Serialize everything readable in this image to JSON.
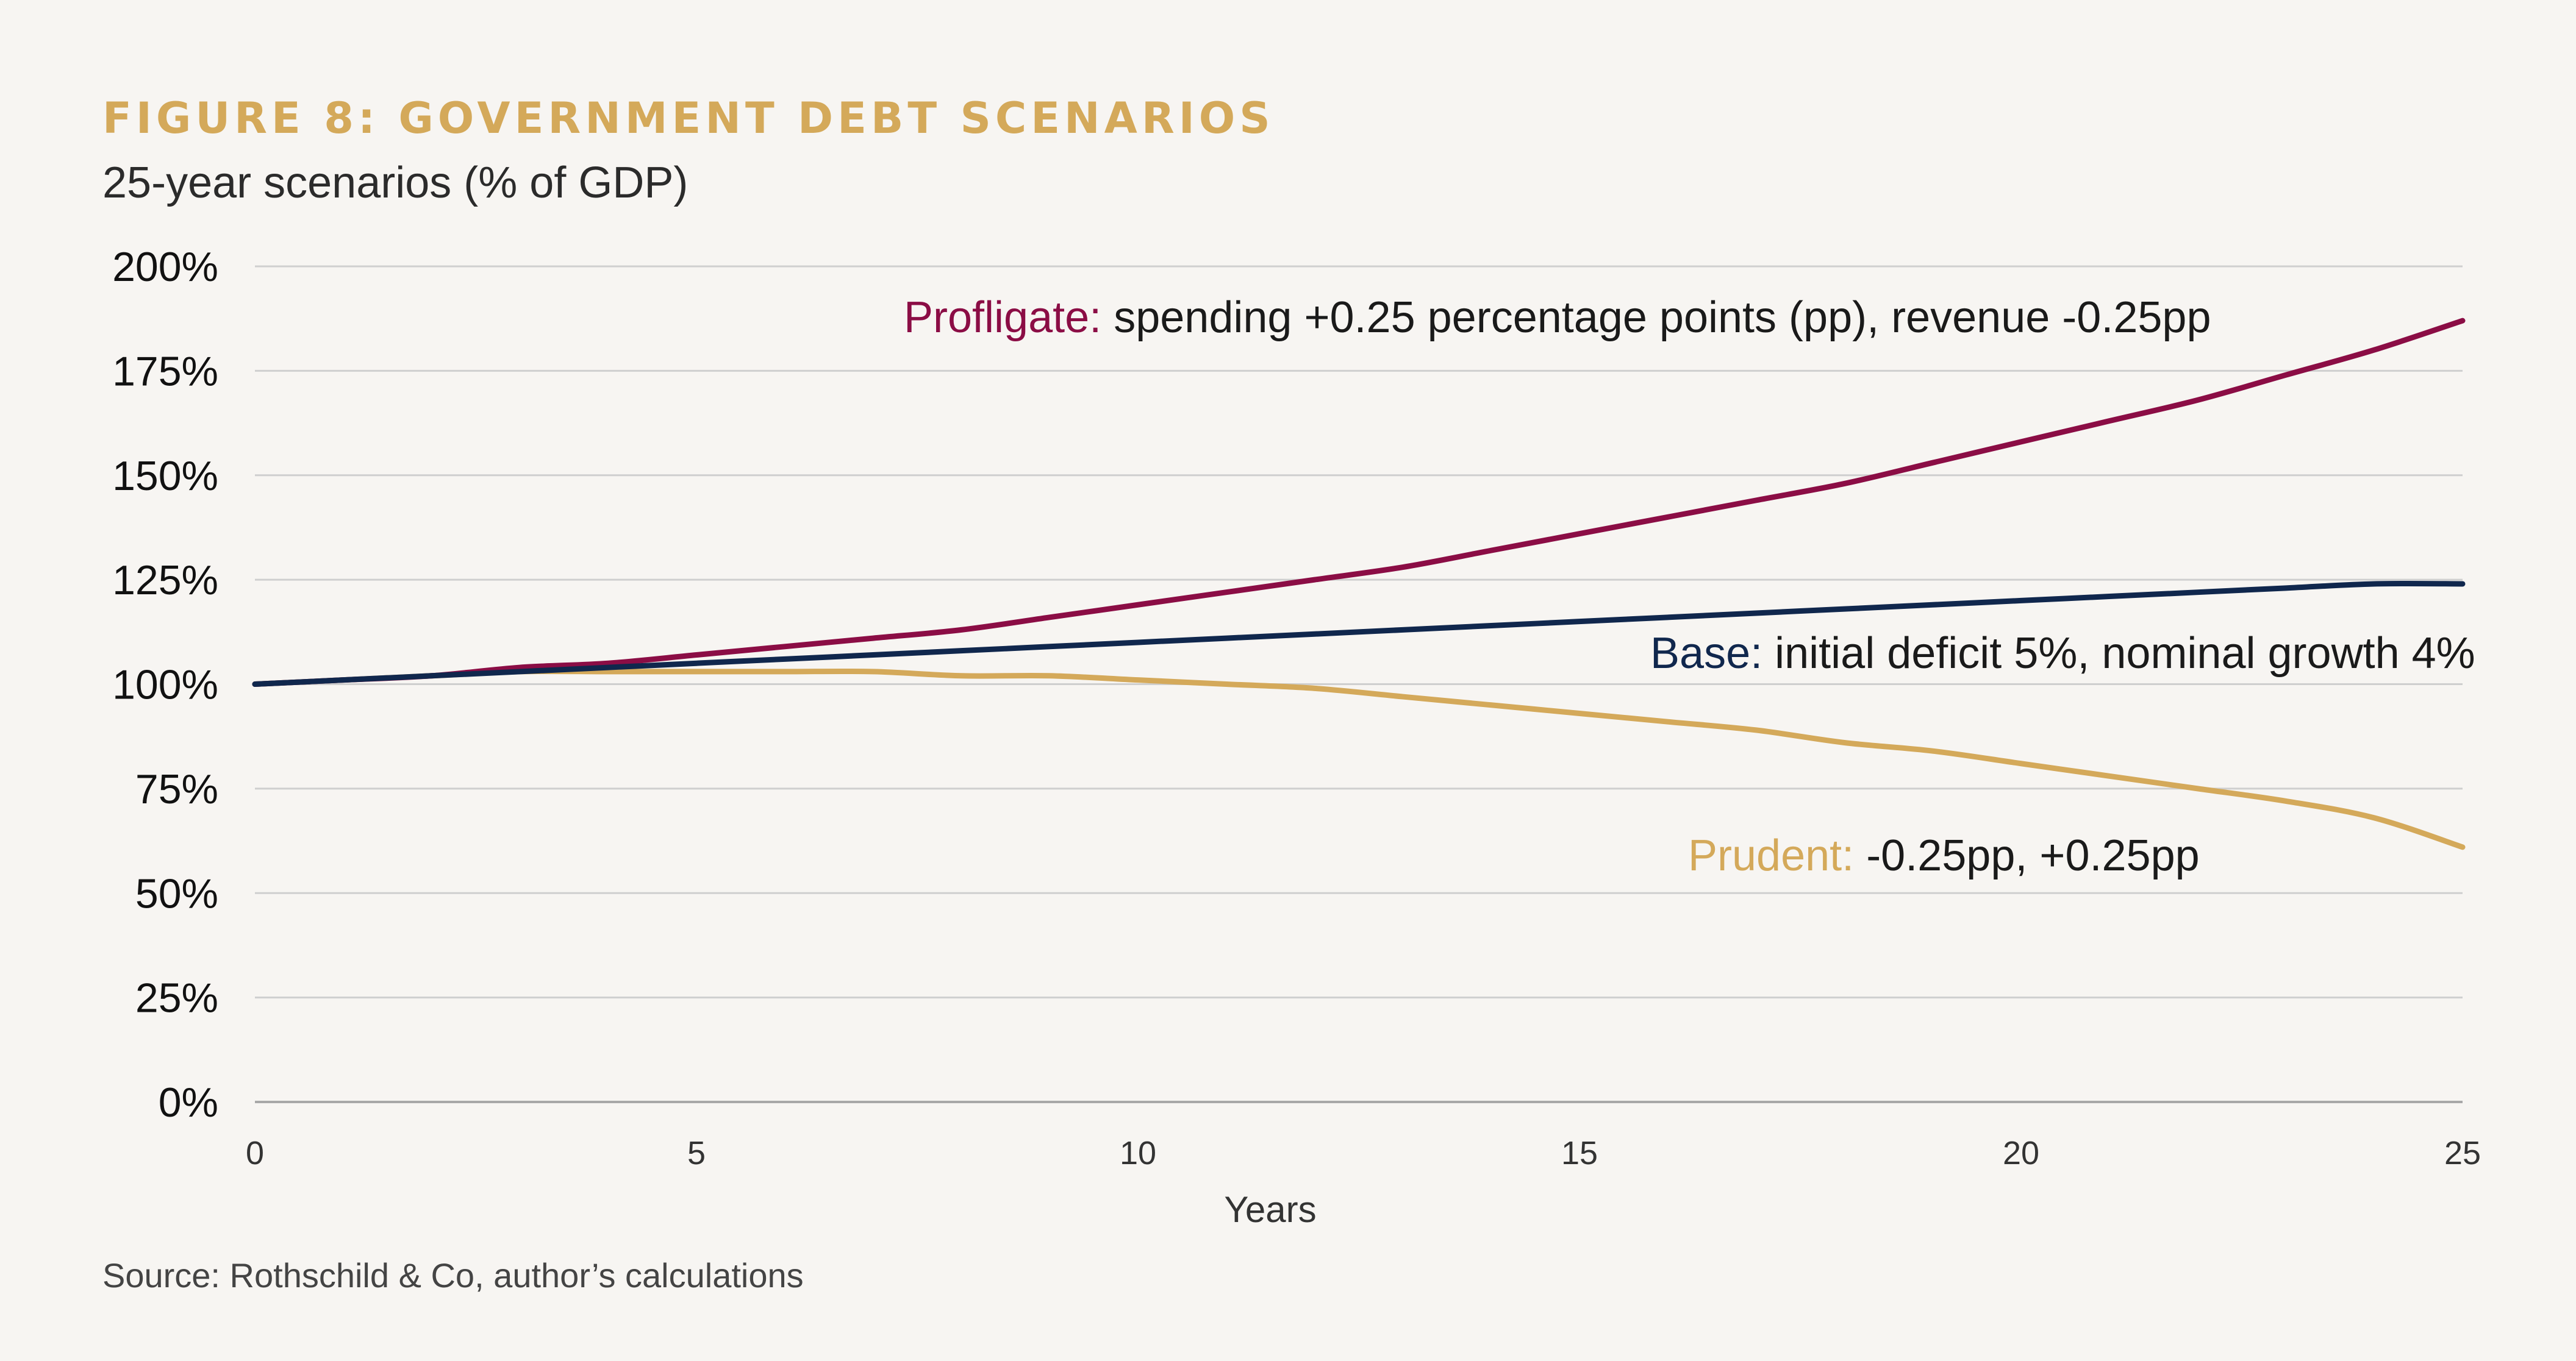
{
  "header": {
    "title": "FIGURE 8: GOVERNMENT DEBT SCENARIOS",
    "subtitle": "25-year scenarios (% of GDP)"
  },
  "footer": {
    "source": "Source: Rothschild & Co, author’s calculations"
  },
  "chart_data": {
    "type": "line",
    "xlabel": "Years",
    "ylabel": "",
    "xlim": [
      0,
      25
    ],
    "ylim": [
      0,
      200
    ],
    "x_ticks": [
      0,
      5,
      10,
      15,
      20,
      25
    ],
    "y_ticks": [
      0,
      25,
      50,
      75,
      100,
      125,
      150,
      175,
      200
    ],
    "y_tick_labels": [
      "0%",
      "25%",
      "50%",
      "75%",
      "100%",
      "125%",
      "150%",
      "175%",
      "200%"
    ],
    "grid": true,
    "legend": "none",
    "x": [
      0,
      1,
      2,
      3,
      4,
      5,
      6,
      7,
      8,
      9,
      10,
      11,
      12,
      13,
      14,
      15,
      16,
      17,
      18,
      19,
      20,
      21,
      22,
      23,
      24,
      25
    ],
    "series": [
      {
        "key": "profligate",
        "name": "Profligate",
        "color": "#8b0d45",
        "values": [
          100,
          101,
          102,
          104,
          105,
          107,
          109,
          111,
          113,
          116,
          119,
          122,
          125,
          128,
          132,
          136,
          140,
          144,
          148,
          153,
          158,
          163,
          168,
          174,
          180,
          187
        ]
      },
      {
        "key": "base",
        "name": "Base",
        "color": "#10274d",
        "values": [
          100,
          101,
          102,
          103,
          104,
          105,
          106,
          107,
          108,
          109,
          110,
          111,
          112,
          113,
          114,
          115,
          116,
          117,
          118,
          119,
          120,
          121,
          122,
          123,
          124,
          124
        ]
      },
      {
        "key": "prudent",
        "name": "Prudent",
        "color": "#d4a95a",
        "values": [
          100,
          101,
          102,
          103,
          103,
          103,
          103,
          103,
          102,
          102,
          101,
          100,
          99,
          97,
          95,
          93,
          91,
          89,
          86,
          84,
          81,
          78,
          75,
          72,
          68,
          61
        ]
      }
    ],
    "annotations": [
      {
        "series": "profligate",
        "label": "Profligate:",
        "text": " spending +0.25 percentage points (pp), revenue -0.25pp"
      },
      {
        "series": "base",
        "label": "Base:",
        "text": " initial deficit 5%, nominal growth 4%"
      },
      {
        "series": "prudent",
        "label": "Prudent:",
        "text": " -0.25pp, +0.25pp"
      }
    ]
  }
}
